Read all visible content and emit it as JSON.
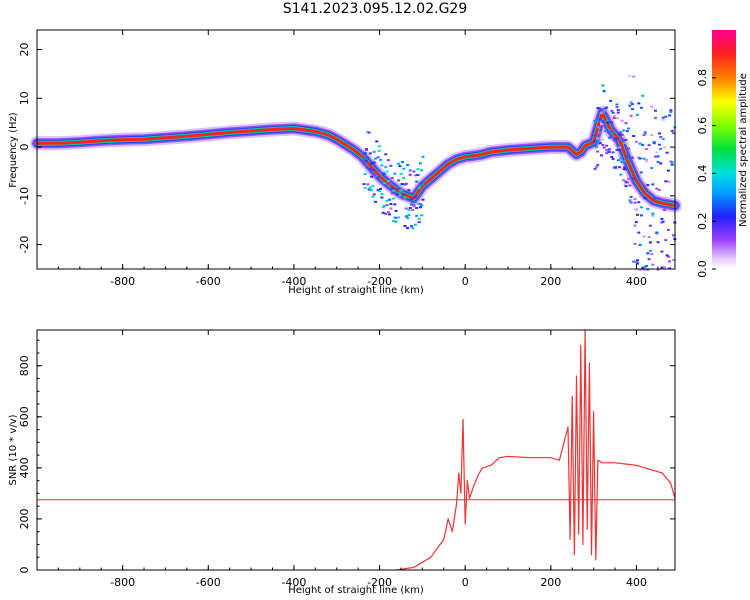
{
  "title": "S141.2023.095.12.02.G29",
  "chart_data": [
    {
      "type": "heatmap",
      "xlabel": "Height of straight line (km)",
      "ylabel": "Frequency (Hz)",
      "xlim": [
        -1000,
        490
      ],
      "ylim": [
        -25,
        24
      ],
      "x_ticks": [
        -800,
        -600,
        -400,
        -200,
        0,
        200,
        400
      ],
      "y_ticks": [
        -20,
        -10,
        0,
        10,
        20
      ],
      "colorbar": {
        "label": "Normalized spectral amplitude",
        "range": [
          0,
          1
        ],
        "ticks": [
          0.0,
          0.2,
          0.4,
          0.6,
          0.8
        ]
      },
      "ridge": {
        "x": [
          -1000,
          -950,
          -900,
          -850,
          -800,
          -750,
          -700,
          -650,
          -600,
          -550,
          -500,
          -450,
          -400,
          -350,
          -320,
          -300,
          -280,
          -260,
          -240,
          -220,
          -200,
          -180,
          -150,
          -120,
          -100,
          -80,
          -60,
          -40,
          -20,
          0,
          20,
          40,
          60,
          80,
          100,
          150,
          200,
          240,
          260,
          270,
          280,
          300,
          310,
          320,
          340,
          360,
          380,
          400,
          420,
          440,
          460,
          490
        ],
        "y": [
          0.8,
          0.8,
          1.0,
          1.3,
          1.5,
          1.6,
          1.9,
          2.2,
          2.6,
          3.0,
          3.3,
          3.6,
          3.8,
          3.2,
          2.5,
          1.6,
          0.5,
          -0.6,
          -2.0,
          -4.0,
          -6.0,
          -7.5,
          -9.5,
          -10.5,
          -8.0,
          -6.5,
          -5.0,
          -3.5,
          -2.5,
          -2.0,
          -1.8,
          -1.5,
          -1.0,
          -0.8,
          -0.6,
          -0.3,
          0.0,
          0.0,
          -1.5,
          -1.0,
          0.3,
          1.0,
          4.0,
          7.0,
          3.5,
          1.5,
          -3.0,
          -7.0,
          -9.5,
          -11.0,
          -11.5,
          -12.0
        ]
      }
    },
    {
      "type": "line",
      "xlabel": "Height of straight line (km)",
      "ylabel": "SNR (10 * v/v)",
      "xlim": [
        -1000,
        490
      ],
      "ylim": [
        0,
        940
      ],
      "x_ticks": [
        -800,
        -600,
        -400,
        -200,
        0,
        200,
        400
      ],
      "y_ticks": [
        0,
        200,
        400,
        600,
        800
      ],
      "series": [
        {
          "values_x": [
            -1000,
            490
          ],
          "values_y": [
            275,
            275
          ]
        },
        {
          "values_x": [
            -160,
            -120,
            -80,
            -50,
            -40,
            -30,
            -20,
            -15,
            -10,
            -5,
            0,
            5,
            10,
            20,
            30,
            40,
            60,
            80,
            100,
            150,
            200,
            220,
            240,
            245,
            250,
            255,
            260,
            265,
            270,
            275,
            280,
            285,
            290,
            295,
            300,
            305,
            310,
            320,
            350,
            400,
            420,
            440,
            460,
            480,
            490
          ],
          "values_y": [
            0,
            10,
            50,
            120,
            200,
            150,
            260,
            380,
            300,
            590,
            180,
            350,
            280,
            330,
            370,
            400,
            410,
            440,
            445,
            440,
            440,
            430,
            560,
            120,
            680,
            60,
            760,
            140,
            880,
            100,
            940,
            160,
            810,
            60,
            620,
            40,
            430,
            420,
            420,
            410,
            400,
            390,
            380,
            340,
            280
          ]
        }
      ]
    }
  ]
}
